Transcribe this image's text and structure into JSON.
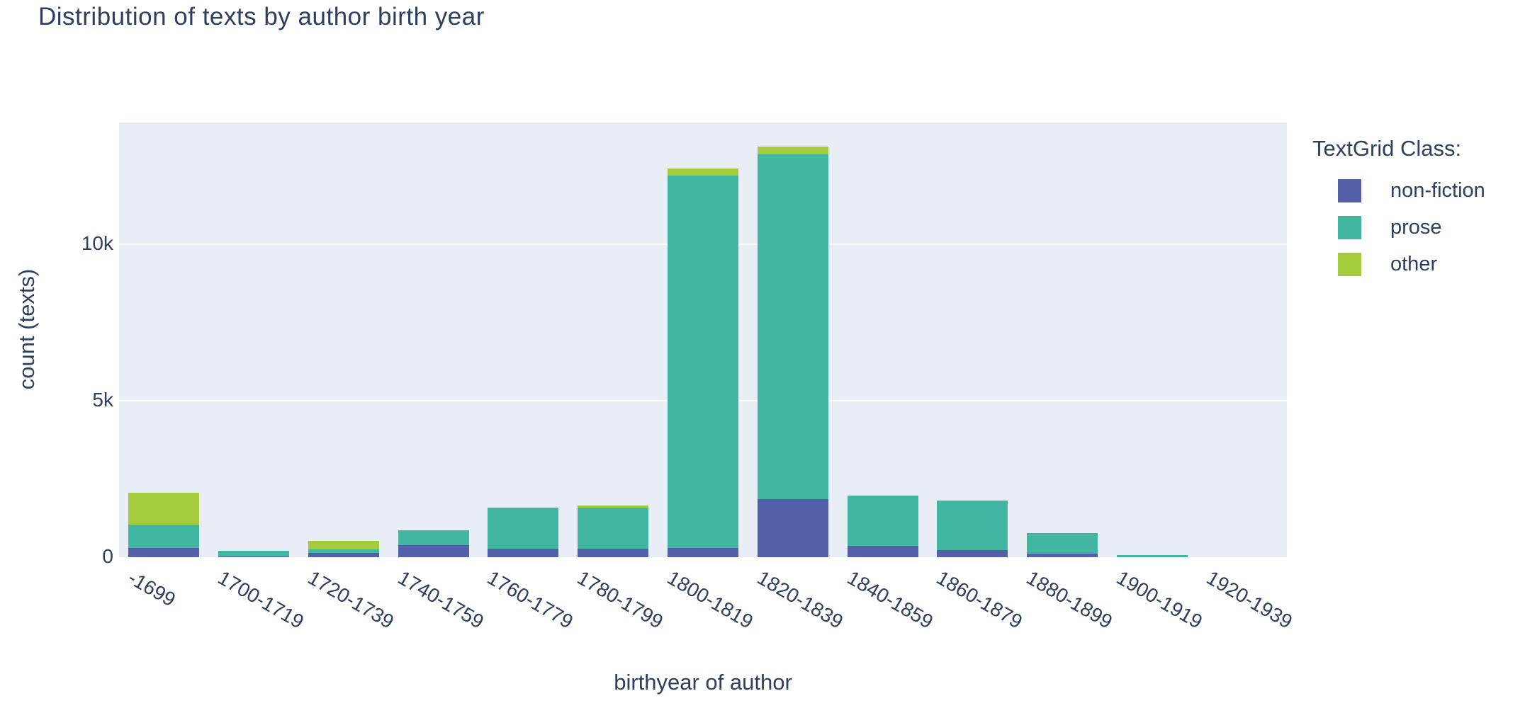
{
  "chart_data": {
    "type": "bar",
    "stacked": true,
    "title": "Distribution of texts by author birth year",
    "xlabel": "birthyear of author",
    "ylabel": "count (texts)",
    "legend_title": "TextGrid Class:",
    "legend_position": "right",
    "grid": true,
    "background_color": "#e8edf6",
    "grid_color": "#ffffff",
    "text_color": "#2d3f5e",
    "categories": [
      "-1699",
      "1700-1719",
      "1720-1739",
      "1740-1759",
      "1760-1779",
      "1780-1799",
      "1800-1819",
      "1820-1839",
      "1840-1859",
      "1860-1879",
      "1880-1899",
      "1900-1919",
      "1920-1939"
    ],
    "series": [
      {
        "name": "non-fiction",
        "color": "#5560ab",
        "values": [
          300,
          30,
          130,
          380,
          270,
          270,
          290,
          1860,
          360,
          220,
          110,
          10,
          0
        ]
      },
      {
        "name": "prose",
        "color": "#41b7a2",
        "values": [
          750,
          170,
          130,
          490,
          1320,
          1320,
          11900,
          11000,
          1610,
          1590,
          650,
          60,
          0
        ]
      },
      {
        "name": "other",
        "color": "#a3cb3b",
        "values": [
          1010,
          0,
          270,
          0,
          0,
          70,
          220,
          250,
          0,
          0,
          0,
          0,
          0
        ]
      }
    ],
    "yticks": [
      {
        "value": 0,
        "label": "0"
      },
      {
        "value": 5000,
        "label": "5k"
      },
      {
        "value": 10000,
        "label": "10k"
      }
    ],
    "ylim": [
      0,
      13880
    ]
  }
}
